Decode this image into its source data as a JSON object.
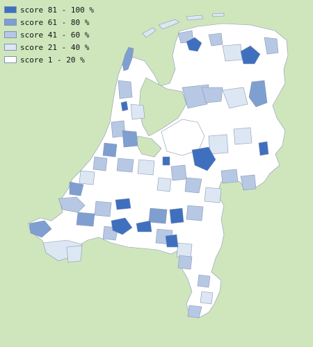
{
  "legend": [
    {
      "label": "score 81 - 100 %",
      "color": "#3f6fbf"
    },
    {
      "label": "score 61 - 80 %",
      "color": "#7f9fd0"
    },
    {
      "label": "score 41 - 60 %",
      "color": "#b6c8e3"
    },
    {
      "label": "score 21 - 40 %",
      "color": "#dde7f3"
    },
    {
      "label": "score 1 - 20 %",
      "color": "#ffffff"
    }
  ],
  "colors": {
    "background": "#cfe6bd",
    "border": "#8797b3"
  }
}
